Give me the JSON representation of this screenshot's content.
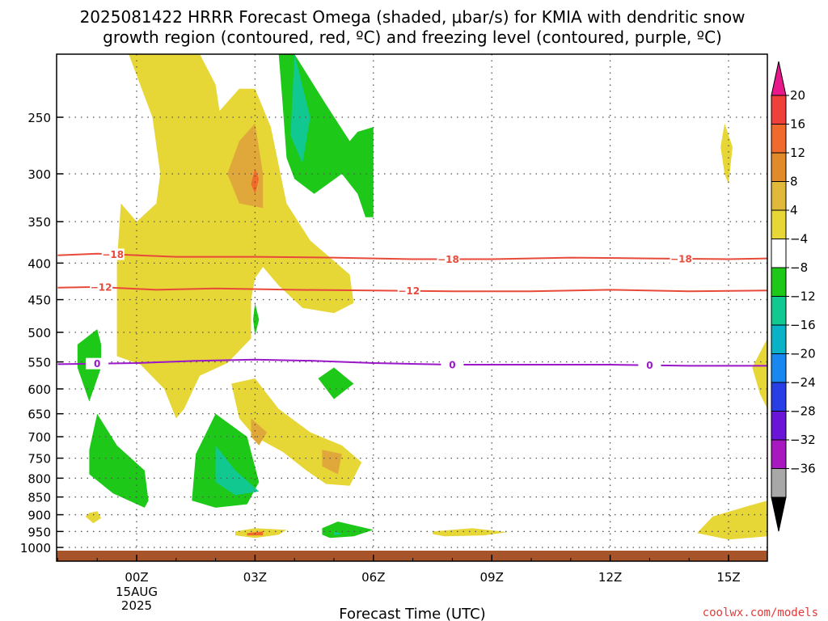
{
  "title_line1": "2025081422 HRRR Forecast Omega (shaded, μbar/s) for KMIA with dendritic snow",
  "title_line2": "growth region (contoured, red, ºC) and freezing level (contoured, purple, ºC)",
  "credit": "coolwx.com/models",
  "chart_data": {
    "type": "contour",
    "xlabel": "Forecast Time (UTC)",
    "ylabel": "",
    "xlim_hours": [
      -2,
      16
    ],
    "ylim_hpa": [
      1000,
      200
    ],
    "y_scale": "log",
    "grid": true,
    "y_ticks": [
      250,
      300,
      350,
      400,
      450,
      500,
      550,
      600,
      650,
      700,
      750,
      800,
      850,
      900,
      950,
      1000
    ],
    "x_ticks": [
      {
        "hour": 0,
        "label": "00Z",
        "date_line1": "15AUG",
        "date_line2": "2025"
      },
      {
        "hour": 3,
        "label": "03Z"
      },
      {
        "hour": 6,
        "label": "06Z"
      },
      {
        "hour": 9,
        "label": "09Z"
      },
      {
        "hour": 12,
        "label": "12Z"
      },
      {
        "hour": 15,
        "label": "15Z"
      }
    ],
    "colorbar": {
      "labels": [
        "20",
        "16",
        "12",
        "8",
        "4",
        "−4",
        "−8",
        "−12",
        "−16",
        "−20",
        "−24",
        "−28",
        "−32",
        "−36"
      ],
      "bins": [
        {
          "range": [
            16,
            20
          ],
          "color": "#f0403a"
        },
        {
          "range": [
            12,
            16
          ],
          "color": "#f06a2c"
        },
        {
          "range": [
            8,
            12
          ],
          "color": "#e08a2a"
        },
        {
          "range": [
            4,
            8
          ],
          "color": "#e0b83a"
        },
        {
          "range": [
            0,
            4
          ],
          "color": "#e6d636"
        },
        {
          "range": [
            -4,
            4
          ],
          "color": "#ffffff"
        },
        {
          "range": [
            -8,
            -4
          ],
          "color": "#1ec818"
        },
        {
          "range": [
            -12,
            -8
          ],
          "color": "#10c890"
        },
        {
          "range": [
            -16,
            -12
          ],
          "color": "#0ab2c8"
        },
        {
          "range": [
            -20,
            -16
          ],
          "color": "#1888f0"
        },
        {
          "range": [
            -24,
            -20
          ],
          "color": "#2a3ee6"
        },
        {
          "range": [
            -28,
            -24
          ],
          "color": "#6a14d8"
        },
        {
          "range": [
            -32,
            -28
          ],
          "color": "#a818c0"
        },
        {
          "range": [
            -36,
            -32
          ],
          "color": "#a8a8a8"
        }
      ],
      "top_arrow_color": "#e8178a",
      "bottom_arrow_color": "#000000"
    },
    "contours": [
      {
        "name": "-18",
        "color": "#e84a3a",
        "points": [
          [
            -2,
            390
          ],
          [
            -1,
            388
          ],
          [
            1,
            392
          ],
          [
            3,
            392
          ],
          [
            5,
            393
          ],
          [
            7,
            395
          ],
          [
            9,
            395
          ],
          [
            11,
            393
          ],
          [
            13,
            394
          ],
          [
            15,
            395
          ],
          [
            16,
            394
          ]
        ],
        "labels": [
          {
            "hour": -0.6,
            "text": "−18"
          },
          {
            "hour": 7.9,
            "text": "−18"
          },
          {
            "hour": 13.8,
            "text": "−18"
          }
        ]
      },
      {
        "name": "-12",
        "color": "#e84a3a",
        "points": [
          [
            -2,
            433
          ],
          [
            -1,
            432
          ],
          [
            0.5,
            436
          ],
          [
            2,
            434
          ],
          [
            4,
            436
          ],
          [
            6,
            437
          ],
          [
            8,
            438
          ],
          [
            10,
            438
          ],
          [
            12,
            436
          ],
          [
            14,
            438
          ],
          [
            16,
            437
          ]
        ],
        "labels": [
          {
            "hour": -0.9,
            "text": "−12"
          },
          {
            "hour": 6.9,
            "text": "−12"
          }
        ]
      },
      {
        "name": "0",
        "color": "#9a18c8",
        "points": [
          [
            -2,
            554
          ],
          [
            0,
            552
          ],
          [
            1.5,
            548
          ],
          [
            3,
            546
          ],
          [
            4.5,
            548
          ],
          [
            6,
            552
          ],
          [
            8,
            555
          ],
          [
            10,
            555
          ],
          [
            12,
            555
          ],
          [
            14,
            557
          ],
          [
            16,
            557
          ]
        ],
        "labels": [
          {
            "hour": -1,
            "text": "0"
          },
          {
            "hour": 8,
            "text": "0"
          },
          {
            "hour": 13,
            "text": "0"
          }
        ]
      }
    ],
    "shaded_regions": [
      {
        "value_bin": [
          4,
          8
        ],
        "color": "#e6d636",
        "points": [
          [
            -0.2,
            200
          ],
          [
            1.6,
            200
          ],
          [
            2.0,
            225
          ],
          [
            2.1,
            245
          ],
          [
            2.6,
            228
          ],
          [
            3.0,
            228
          ],
          [
            3.4,
            258
          ],
          [
            3.8,
            330
          ],
          [
            4.4,
            372
          ],
          [
            5.4,
            415
          ],
          [
            5.5,
            455
          ],
          [
            5.0,
            470
          ],
          [
            4.2,
            462
          ],
          [
            3.6,
            430
          ],
          [
            3.2,
            405
          ],
          [
            3.0,
            420
          ],
          [
            2.9,
            450
          ],
          [
            2.9,
            510
          ],
          [
            2.3,
            552
          ],
          [
            1.6,
            575
          ],
          [
            1.2,
            640
          ],
          [
            1.0,
            660
          ],
          [
            0.7,
            600
          ],
          [
            0.1,
            555
          ],
          [
            -0.5,
            540
          ],
          [
            -0.5,
            400
          ],
          [
            -0.4,
            330
          ],
          [
            0.0,
            350
          ],
          [
            0.6,
            400
          ],
          [
            0.8,
            440
          ],
          [
            0.9,
            470
          ],
          [
            0.6,
            490
          ],
          [
            0.6,
            420
          ],
          [
            0.0,
            350
          ],
          [
            0.5,
            330
          ],
          [
            0.6,
            300
          ],
          [
            0.4,
            250
          ]
        ]
      },
      {
        "value_bin": [
          4,
          8
        ],
        "color": "#e6d636",
        "points": [
          [
            2.4,
            590
          ],
          [
            3.0,
            580
          ],
          [
            3.6,
            640
          ],
          [
            4.4,
            690
          ],
          [
            5.2,
            720
          ],
          [
            5.7,
            760
          ],
          [
            5.4,
            820
          ],
          [
            4.8,
            815
          ],
          [
            4.3,
            780
          ],
          [
            3.7,
            735
          ],
          [
            3.0,
            700
          ],
          [
            2.6,
            660
          ]
        ]
      },
      {
        "value_bin": [
          4,
          8
        ],
        "color": "#e6d636",
        "points": [
          [
            2.5,
            950
          ],
          [
            3.0,
            940
          ],
          [
            3.8,
            945
          ],
          [
            3.6,
            960
          ],
          [
            3.0,
            970
          ],
          [
            2.5,
            962
          ]
        ]
      },
      {
        "value_bin": [
          4,
          8
        ],
        "color": "#e6d636",
        "points": [
          [
            7.5,
            950
          ],
          [
            8.5,
            940
          ],
          [
            9.4,
            952
          ],
          [
            8.8,
            962
          ],
          [
            7.8,
            965
          ],
          [
            7.5,
            958
          ]
        ]
      },
      {
        "value_bin": [
          4,
          8
        ],
        "color": "#e6d636",
        "points": [
          [
            14.2,
            955
          ],
          [
            14.6,
            905
          ],
          [
            15.5,
            875
          ],
          [
            16.0,
            860
          ],
          [
            16.0,
            965
          ],
          [
            15.0,
            975
          ]
        ]
      },
      {
        "value_bin": [
          4,
          8
        ],
        "color": "#e6d636",
        "points": [
          [
            16.0,
            510
          ],
          [
            15.6,
            560
          ],
          [
            15.8,
            610
          ],
          [
            16.0,
            640
          ]
        ]
      },
      {
        "value_bin": [
          4,
          8
        ],
        "color": "#e6d636",
        "points": [
          [
            -1.2,
            895
          ],
          [
            -1.0,
            890
          ],
          [
            -0.9,
            910
          ],
          [
            -1.1,
            925
          ],
          [
            -1.3,
            905
          ]
        ]
      },
      {
        "value_bin": [
          4,
          8
        ],
        "color": "#e6d636",
        "points": [
          [
            14.9,
            255
          ],
          [
            15.1,
            275
          ],
          [
            15.0,
            310
          ],
          [
            14.9,
            300
          ],
          [
            14.8,
            275
          ]
        ]
      },
      {
        "value_bin": [
          8,
          12
        ],
        "color": "#e0a83a",
        "points": [
          [
            3.0,
            255
          ],
          [
            3.2,
            300
          ],
          [
            3.2,
            335
          ],
          [
            2.6,
            330
          ],
          [
            2.3,
            300
          ],
          [
            2.6,
            270
          ]
        ]
      },
      {
        "value_bin": [
          8,
          12
        ],
        "color": "#e0a83a",
        "points": [
          [
            2.9,
            660
          ],
          [
            3.3,
            690
          ],
          [
            3.1,
            720
          ],
          [
            2.9,
            700
          ]
        ]
      },
      {
        "value_bin": [
          8,
          12
        ],
        "color": "#e0a83a",
        "points": [
          [
            4.7,
            730
          ],
          [
            5.2,
            740
          ],
          [
            5.1,
            790
          ],
          [
            4.7,
            770
          ]
        ]
      },
      {
        "value_bin": [
          12,
          16
        ],
        "color": "#f06a2c",
        "points": [
          [
            3.0,
            295
          ],
          [
            3.1,
            305
          ],
          [
            3.0,
            320
          ],
          [
            2.9,
            310
          ]
        ]
      },
      {
        "value_bin": [
          12,
          16
        ],
        "color": "#f06a2c",
        "points": [
          [
            2.8,
            955
          ],
          [
            3.2,
            950
          ],
          [
            3.2,
            962
          ],
          [
            2.8,
            962
          ]
        ]
      },
      {
        "value_bin": [
          -8,
          -4
        ],
        "color": "#1ec818",
        "points": [
          [
            3.6,
            200
          ],
          [
            4.0,
            200
          ],
          [
            4.8,
            240
          ],
          [
            5.4,
            270
          ],
          [
            5.6,
            262
          ],
          [
            6.0,
            258
          ],
          [
            6.0,
            345
          ],
          [
            5.8,
            345
          ],
          [
            5.6,
            320
          ],
          [
            5.2,
            300
          ],
          [
            4.5,
            320
          ],
          [
            4.0,
            305
          ],
          [
            3.8,
            285
          ],
          [
            3.7,
            240
          ]
        ]
      },
      {
        "value_bin": [
          -8,
          -4
        ],
        "color": "#1ec818",
        "points": [
          [
            -1.5,
            520
          ],
          [
            -1.0,
            495
          ],
          [
            -0.9,
            520
          ],
          [
            -0.9,
            560
          ],
          [
            -1.2,
            625
          ],
          [
            -1.5,
            560
          ]
        ]
      },
      {
        "value_bin": [
          -8,
          -4
        ],
        "color": "#1ec818",
        "points": [
          [
            -1.2,
            730
          ],
          [
            -1.0,
            650
          ],
          [
            -0.5,
            720
          ],
          [
            0.2,
            780
          ],
          [
            0.3,
            860
          ],
          [
            0.2,
            880
          ],
          [
            -0.6,
            840
          ],
          [
            -1.2,
            790
          ]
        ]
      },
      {
        "value_bin": [
          -8,
          -4
        ],
        "color": "#1ec818",
        "points": [
          [
            1.4,
            860
          ],
          [
            1.5,
            740
          ],
          [
            2.0,
            650
          ],
          [
            2.8,
            700
          ],
          [
            3.1,
            810
          ],
          [
            2.8,
            870
          ],
          [
            2.0,
            880
          ]
        ]
      },
      {
        "value_bin": [
          -8,
          -4
        ],
        "color": "#1ec818",
        "points": [
          [
            4.6,
            580
          ],
          [
            5.0,
            560
          ],
          [
            5.5,
            590
          ],
          [
            5.0,
            620
          ]
        ]
      },
      {
        "value_bin": [
          -8,
          -4
        ],
        "color": "#1ec818",
        "points": [
          [
            4.7,
            940
          ],
          [
            5.1,
            920
          ],
          [
            6.0,
            945
          ],
          [
            5.5,
            965
          ],
          [
            4.9,
            970
          ],
          [
            4.7,
            960
          ]
        ]
      },
      {
        "value_bin": [
          -8,
          -4
        ],
        "color": "#1ec818",
        "points": [
          [
            3.0,
            455
          ],
          [
            3.1,
            480
          ],
          [
            3.0,
            505
          ],
          [
            2.95,
            480
          ]
        ]
      },
      {
        "value_bin": [
          -12,
          -8
        ],
        "color": "#10c890",
        "points": [
          [
            4.0,
            200
          ],
          [
            4.4,
            250
          ],
          [
            4.2,
            290
          ],
          [
            3.9,
            265
          ]
        ]
      },
      {
        "value_bin": [
          -12,
          -8
        ],
        "color": "#10c890",
        "points": [
          [
            2.0,
            720
          ],
          [
            2.5,
            780
          ],
          [
            3.1,
            835
          ],
          [
            2.5,
            845
          ],
          [
            2.0,
            810
          ]
        ]
      },
      {
        "value_bin": [
          -12,
          -8
        ],
        "color": "#10c890",
        "points": [
          [
            5.0,
            950
          ],
          [
            5.2,
            957
          ],
          [
            5.0,
            962
          ]
        ]
      }
    ]
  }
}
